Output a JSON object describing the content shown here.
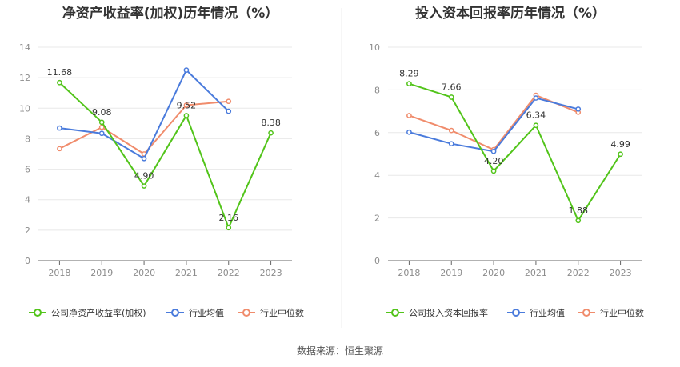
{
  "source": "数据来源：恒生聚源",
  "chart_data": [
    {
      "type": "line",
      "title": "净资产收益率(加权)历年情况（%）",
      "categories": [
        "2018",
        "2019",
        "2020",
        "2021",
        "2022",
        "2023"
      ],
      "ylim": [
        0,
        14
      ],
      "yticks": [
        0,
        2,
        4,
        6,
        8,
        10,
        12,
        14
      ],
      "grid": true,
      "legend_position": "bottom",
      "series": [
        {
          "name": "公司净资产收益率(加权)",
          "color": "#52c41a",
          "values": [
            11.68,
            9.08,
            4.9,
            9.52,
            2.16,
            8.38
          ],
          "labels": [
            "11.68",
            "9.08",
            "4.90",
            "9.52",
            "2.16",
            "8.38"
          ]
        },
        {
          "name": "行业均值",
          "color": "#4a7bdc",
          "values": [
            8.7,
            8.35,
            6.7,
            12.5,
            9.8,
            null
          ]
        },
        {
          "name": "行业中位数",
          "color": "#f08c6c",
          "values": [
            7.35,
            8.75,
            7.0,
            10.2,
            10.45,
            null
          ]
        }
      ]
    },
    {
      "type": "line",
      "title": "投入资本回报率历年情况（%）",
      "categories": [
        "2018",
        "2019",
        "2020",
        "2021",
        "2022",
        "2023"
      ],
      "ylim": [
        0,
        10
      ],
      "yticks": [
        0,
        2,
        4,
        6,
        8,
        10
      ],
      "grid": true,
      "legend_position": "bottom",
      "series": [
        {
          "name": "公司投入资本回报率",
          "color": "#52c41a",
          "values": [
            8.29,
            7.66,
            4.2,
            6.34,
            1.88,
            4.99
          ],
          "labels": [
            "8.29",
            "7.66",
            "4.20",
            "6.34",
            "1.88",
            "4.99"
          ]
        },
        {
          "name": "行业均值",
          "color": "#4a7bdc",
          "values": [
            6.02,
            5.48,
            5.12,
            7.62,
            7.1,
            null
          ]
        },
        {
          "name": "行业中位数",
          "color": "#f08c6c",
          "values": [
            6.8,
            6.1,
            5.2,
            7.75,
            6.95,
            null
          ]
        }
      ]
    }
  ]
}
